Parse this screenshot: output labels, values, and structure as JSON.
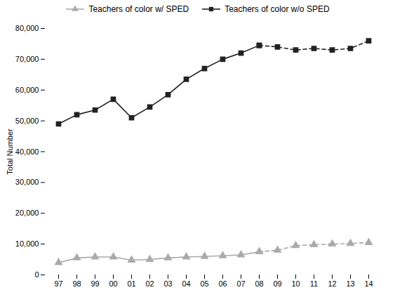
{
  "chart_data": {
    "type": "line",
    "categories": [
      "97",
      "98",
      "99",
      "00",
      "01",
      "02",
      "03",
      "04",
      "05",
      "06",
      "07",
      "08",
      "09",
      "10",
      "11",
      "12",
      "13",
      "14"
    ],
    "series": [
      {
        "name": "Teachers of color w/ SPED",
        "color": "#aaaaaa",
        "marker": "triangle",
        "line_style": "solid",
        "values": [
          4000,
          5500,
          5800,
          5800,
          4800,
          5000,
          5500,
          5800,
          6000,
          6200,
          6500,
          7500,
          null,
          null,
          null,
          null,
          null,
          null
        ]
      },
      {
        "name": "Teachers of color w/ SPED",
        "color": "#aaaaaa",
        "marker": "triangle",
        "line_style": "dashed",
        "values": [
          null,
          null,
          null,
          null,
          null,
          null,
          null,
          null,
          null,
          null,
          null,
          7500,
          8000,
          9500,
          9800,
          10000,
          10200,
          10500
        ]
      },
      {
        "name": "Teachers of color w/o SPED",
        "color": "#222222",
        "marker": "square",
        "line_style": "solid",
        "values": [
          49000,
          52000,
          53500,
          57000,
          51000,
          54500,
          58500,
          63500,
          67000,
          70000,
          72000,
          74500,
          null,
          null,
          null,
          null,
          null,
          null
        ]
      },
      {
        "name": "Teachers of color w/o SPED",
        "color": "#222222",
        "marker": "square",
        "line_style": "dashed",
        "values": [
          null,
          null,
          null,
          null,
          null,
          null,
          null,
          null,
          null,
          null,
          null,
          74500,
          74000,
          73000,
          73500,
          73000,
          73500,
          76000
        ]
      }
    ],
    "ylabel": "Total Number",
    "ylim": [
      0,
      80000
    ],
    "yticks": [
      0,
      {
        "value": 10000,
        "label": "10,000"
      },
      {
        "value": 20000,
        "label": "20,000"
      },
      {
        "value": 30000,
        "label": "30,000"
      },
      {
        "value": 40000,
        "label": "40,000"
      },
      {
        "value": 50000,
        "label": "50,000"
      },
      {
        "value": 60000,
        "label": "60,000"
      },
      {
        "value": 70000,
        "label": "70,000"
      },
      {
        "value": 80000,
        "label": "80,000"
      }
    ],
    "legend": "top",
    "grid": false
  }
}
